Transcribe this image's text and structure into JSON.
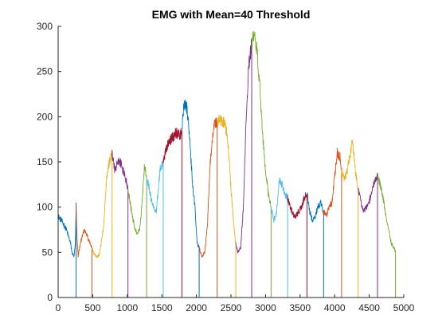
{
  "chart_data": {
    "type": "line",
    "title": "EMG with Mean=40 Threshold",
    "xlabel": "",
    "ylabel": "",
    "xlim": [
      0,
      5000
    ],
    "ylim": [
      0,
      300
    ],
    "xticks": [
      "0",
      "500",
      "1000",
      "1500",
      "2000",
      "2500",
      "3000",
      "3500",
      "4000",
      "4500",
      "5000"
    ],
    "yticks": [
      "0",
      "50",
      "100",
      "150",
      "200",
      "250",
      "300"
    ],
    "grid": false,
    "legend": "none",
    "colors": [
      "#0072BD",
      "#D95319",
      "#EDB120",
      "#7E2F8E",
      "#77AC30",
      "#4DBEEE",
      "#A2142F"
    ],
    "segments": [
      {
        "x": [
          0,
          50,
          120,
          180,
          200,
          230,
          250,
          260
        ],
        "y": [
          90,
          85,
          75,
          60,
          50,
          45,
          60,
          105
        ]
      },
      {
        "x": [
          260,
          270,
          290,
          320,
          380,
          420,
          460,
          490
        ],
        "y": [
          105,
          70,
          45,
          60,
          75,
          68,
          60,
          55
        ]
      },
      {
        "x": [
          490,
          520,
          560,
          600,
          660,
          700,
          740,
          780
        ],
        "y": [
          55,
          48,
          45,
          48,
          80,
          130,
          150,
          160
        ]
      },
      {
        "x": [
          780,
          820,
          860,
          900,
          940,
          980,
          1010
        ],
        "y": [
          160,
          140,
          150,
          150,
          140,
          130,
          120
        ]
      },
      {
        "x": [
          1010,
          1050,
          1100,
          1140,
          1180,
          1220,
          1250,
          1280
        ],
        "y": [
          120,
          100,
          80,
          70,
          75,
          110,
          148,
          130
        ]
      },
      {
        "x": [
          1280,
          1310,
          1340,
          1380,
          1420,
          1450,
          1480,
          1520
        ],
        "y": [
          130,
          125,
          110,
          100,
          95,
          120,
          145,
          150
        ]
      },
      {
        "x": [
          1520,
          1560,
          1600,
          1640,
          1680,
          1720,
          1760,
          1790
        ],
        "y": [
          150,
          165,
          170,
          175,
          180,
          182,
          180,
          185
        ]
      },
      {
        "x": [
          1790,
          1820,
          1860,
          1900,
          1940,
          1980,
          2010,
          2040
        ],
        "y": [
          185,
          215,
          210,
          180,
          130,
          100,
          60,
          55
        ]
      },
      {
        "x": [
          2040,
          2080,
          2120,
          2160,
          2200,
          2250,
          2300
        ],
        "y": [
          55,
          45,
          50,
          80,
          150,
          190,
          195
        ]
      },
      {
        "x": [
          2300,
          2340,
          2380,
          2420,
          2460,
          2500,
          2540,
          2570
        ],
        "y": [
          195,
          197,
          195,
          190,
          170,
          120,
          80,
          60
        ]
      },
      {
        "x": [
          2570,
          2600,
          2640,
          2680,
          2720,
          2760,
          2800
        ],
        "y": [
          60,
          50,
          55,
          100,
          200,
          260,
          280
        ]
      },
      {
        "x": [
          2800,
          2840,
          2880,
          2920,
          2960,
          3000,
          3040,
          3080
        ],
        "y": [
          280,
          295,
          270,
          230,
          180,
          140,
          115,
          100
        ]
      },
      {
        "x": [
          3080,
          3120,
          3160,
          3200,
          3240,
          3280,
          3320
        ],
        "y": [
          100,
          85,
          95,
          130,
          125,
          115,
          110
        ]
      },
      {
        "x": [
          3320,
          3360,
          3400,
          3440,
          3480,
          3520,
          3560,
          3600
        ],
        "y": [
          110,
          100,
          92,
          90,
          95,
          100,
          110,
          115
        ]
      },
      {
        "x": [
          3600,
          3640,
          3680,
          3720,
          3760,
          3800,
          3840
        ],
        "y": [
          115,
          95,
          85,
          90,
          100,
          105,
          95
        ]
      },
      {
        "x": [
          3840,
          3880,
          3920,
          3960,
          4000,
          4040,
          4080,
          4100
        ],
        "y": [
          95,
          90,
          100,
          105,
          135,
          160,
          155,
          140
        ]
      },
      {
        "x": [
          4100,
          4140,
          4180,
          4220,
          4260,
          4300,
          4340
        ],
        "y": [
          140,
          130,
          140,
          155,
          175,
          140,
          120
        ]
      },
      {
        "x": [
          4340,
          4380,
          4420,
          4460,
          4500,
          4540,
          4580,
          4620
        ],
        "y": [
          120,
          105,
          95,
          100,
          105,
          120,
          130,
          135
        ]
      },
      {
        "x": [
          4620,
          4660,
          4700,
          4740,
          4780,
          4820,
          4860,
          4880
        ],
        "y": [
          135,
          125,
          110,
          90,
          75,
          60,
          55,
          50
        ]
      }
    ],
    "thresholds": [
      260,
      490,
      780,
      1010,
      1280,
      1520,
      1790,
      2040,
      2300,
      2570,
      2800,
      3080,
      3320,
      3600,
      3840,
      4100,
      4340,
      4620,
      4880
    ]
  }
}
